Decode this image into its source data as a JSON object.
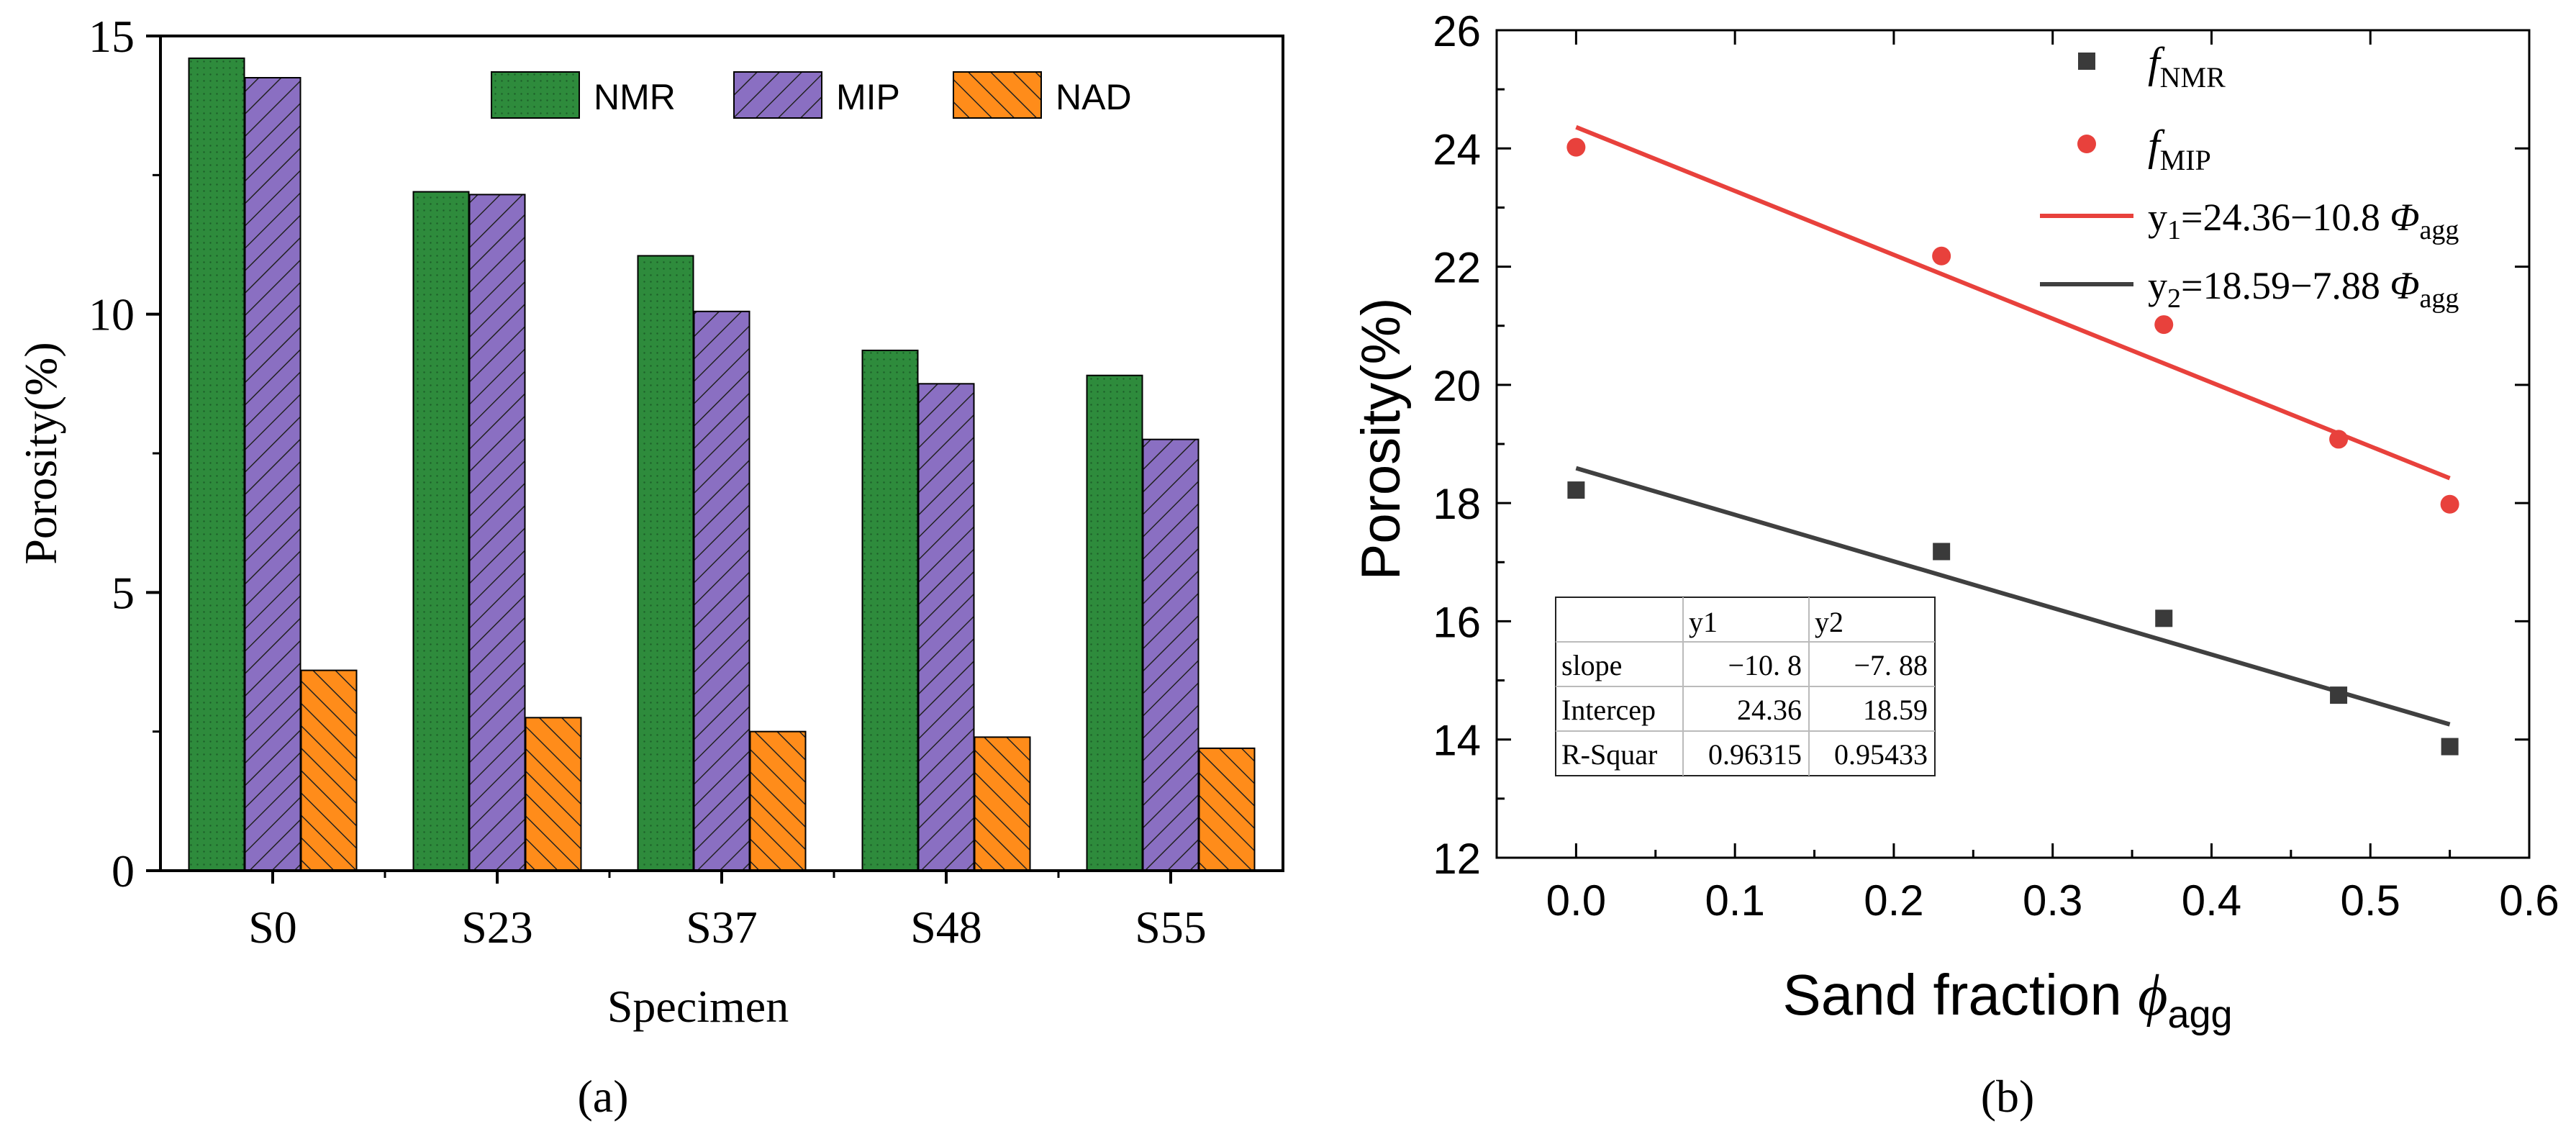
{
  "chart_data": [
    {
      "type": "bar",
      "panel_label": "(a)",
      "xlabel": "Specimen",
      "ylabel": "Porosity(%)",
      "categories": [
        "S0",
        "S23",
        "S37",
        "S48",
        "S55"
      ],
      "ylim": [
        0,
        15
      ],
      "yticks": [
        0,
        5,
        10,
        15
      ],
      "series": [
        {
          "name": "NMR",
          "values": [
            14.6,
            12.2,
            11.05,
            9.35,
            8.9
          ],
          "color": "#2e8b3c",
          "pattern": "dots"
        },
        {
          "name": "MIP",
          "values": [
            14.25,
            12.15,
            10.05,
            8.75,
            7.75
          ],
          "color": "#8a6fc2",
          "pattern": "diagonal-up"
        },
        {
          "name": "NAD",
          "values": [
            3.6,
            2.75,
            2.5,
            2.4,
            2.2
          ],
          "color": "#ff8c1a",
          "pattern": "diagonal-down"
        }
      ],
      "legend_position": "top-right"
    },
    {
      "type": "scatter",
      "panel_label": "(b)",
      "xlabel": "Sand fraction ϕ",
      "xlabel_sub": "agg",
      "ylabel": "Porosity(%)",
      "xlim": [
        -0.05,
        0.6
      ],
      "ylim": [
        12,
        26
      ],
      "xticks": [
        "0.0",
        "0.1",
        "0.2",
        "0.3",
        "0.4",
        "0.5",
        "0.6"
      ],
      "yticks": [
        "12",
        "14",
        "16",
        "18",
        "20",
        "22",
        "24",
        "26"
      ],
      "series": [
        {
          "name": "f",
          "name_sub": "NMR",
          "marker": "square",
          "color": "#3a3a3a",
          "x": [
            0.0,
            0.23,
            0.37,
            0.48,
            0.55
          ],
          "y": [
            18.22,
            17.18,
            16.05,
            14.75,
            13.88
          ]
        },
        {
          "name": "f",
          "name_sub": "MIP",
          "marker": "circle",
          "color": "#e8413c",
          "x": [
            0.0,
            0.23,
            0.37,
            0.48,
            0.55
          ],
          "y": [
            24.02,
            22.18,
            21.02,
            19.08,
            17.98
          ]
        }
      ],
      "fits": [
        {
          "label_pre": "y",
          "label_sub": "1",
          "label_eq": "=24.36−10.8 ",
          "label_var": "Φ",
          "label_var_sub": "agg",
          "slope": -10.8,
          "intercept": 24.36,
          "x_range": [
            0.0,
            0.55
          ],
          "color": "#e8413c"
        },
        {
          "label_pre": "y",
          "label_sub": "2",
          "label_eq": "=18.59−7.88 ",
          "label_var": "Φ",
          "label_var_sub": "agg",
          "slope": -7.88,
          "intercept": 18.59,
          "x_range": [
            0.0,
            0.55
          ],
          "color": "#404040"
        }
      ],
      "stats_table": {
        "columns": [
          "",
          "y1",
          "y2"
        ],
        "rows": [
          [
            "slope",
            "−10. 8",
            "−7. 88"
          ],
          [
            "Intercep",
            "24.36",
            "18.59"
          ],
          [
            "R-Squar",
            "0.96315",
            "0.95433"
          ]
        ]
      },
      "legend_position": "top-right"
    }
  ]
}
